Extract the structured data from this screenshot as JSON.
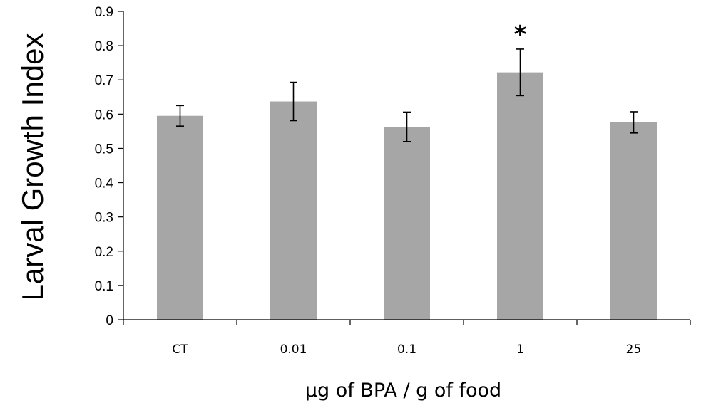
{
  "chart_data": {
    "type": "bar",
    "categories": [
      "CT",
      "0.01",
      "0.1",
      "1",
      "25"
    ],
    "values": [
      0.595,
      0.637,
      0.563,
      0.722,
      0.576
    ],
    "errors": [
      0.03,
      0.056,
      0.043,
      0.068,
      0.031
    ],
    "annotations": [
      {
        "category": "1",
        "text": "*"
      }
    ],
    "ylabel": "Larval Growth Index",
    "xlabel": "µg of BPA / g of food",
    "ylim": [
      0,
      0.9
    ],
    "yticks": [
      "0",
      "0.1",
      "0.2",
      "0.3",
      "0.4",
      "0.5",
      "0.6",
      "0.7",
      "0.8",
      "0.9"
    ],
    "grid": false,
    "bar_color": "#a6a6a6",
    "error_bar_color": "#000000"
  }
}
